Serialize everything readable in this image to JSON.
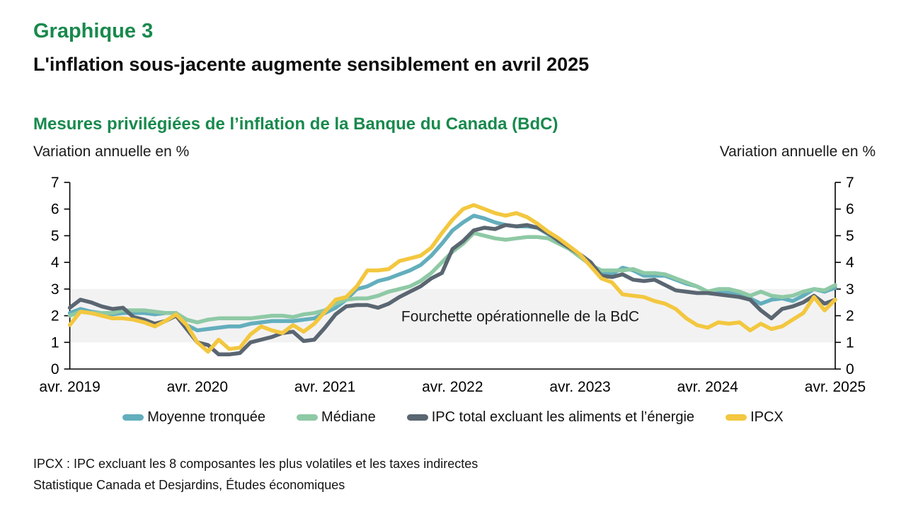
{
  "header": {
    "title": "Graphique 3",
    "subtitle": "L'inflation sous-jacente augmente sensiblement en avril 2025"
  },
  "chart": {
    "heading": "Mesures privilégiées de l’inflation de la Banque du Canada (BdC)",
    "left_axis_note": "Variation annuelle en %",
    "right_axis_note": "Variation annuelle en %"
  },
  "chart_data": {
    "type": "line",
    "x_unit": "month",
    "x_range": [
      "avr. 2019",
      "avr. 2025"
    ],
    "x_tick_labels": [
      "avr. 2019",
      "avr. 2020",
      "avr. 2021",
      "avr. 2022",
      "avr. 2023",
      "avr. 2024",
      "avr. 2025"
    ],
    "x_tick_positions": [
      0,
      12,
      24,
      36,
      48,
      60,
      72
    ],
    "ylim": [
      0,
      7
    ],
    "y_ticks": [
      0,
      1,
      2,
      3,
      4,
      5,
      6,
      7
    ],
    "dual_y_axis": true,
    "grid": false,
    "legend_position": "bottom",
    "operational_band": {
      "from": 1,
      "to": 3,
      "label": "Fourchette opérationnelle de la BdC",
      "color": "#f2f2f2"
    },
    "series": [
      {
        "name": "Moyenne tronquée",
        "color": "#63aebd",
        "values": [
          2.1,
          2.25,
          2.15,
          2.1,
          2.05,
          2.1,
          2.1,
          2.1,
          2.05,
          2.1,
          2.1,
          1.65,
          1.45,
          1.5,
          1.55,
          1.6,
          1.6,
          1.7,
          1.75,
          1.8,
          1.8,
          1.8,
          1.85,
          1.9,
          2.1,
          2.3,
          2.6,
          3.0,
          3.1,
          3.3,
          3.4,
          3.55,
          3.7,
          3.9,
          4.25,
          4.7,
          5.2,
          5.5,
          5.75,
          5.65,
          5.5,
          5.4,
          5.35,
          5.35,
          5.3,
          5.05,
          4.85,
          4.5,
          4.25,
          3.9,
          3.6,
          3.55,
          3.8,
          3.7,
          3.5,
          3.5,
          3.5,
          3.35,
          3.2,
          3.1,
          2.9,
          2.85,
          2.9,
          2.75,
          2.65,
          2.45,
          2.6,
          2.65,
          2.55,
          2.75,
          3.0,
          2.9,
          3.05
        ]
      },
      {
        "name": "Médiane",
        "color": "#8ec9a5",
        "values": [
          2.0,
          2.15,
          2.1,
          2.1,
          2.1,
          2.2,
          2.2,
          2.2,
          2.15,
          2.1,
          2.1,
          1.85,
          1.75,
          1.85,
          1.9,
          1.9,
          1.9,
          1.9,
          1.95,
          2.0,
          2.0,
          1.95,
          2.05,
          2.1,
          2.2,
          2.45,
          2.6,
          2.65,
          2.65,
          2.75,
          2.9,
          3.0,
          3.1,
          3.3,
          3.6,
          4.0,
          4.4,
          4.7,
          5.1,
          5.0,
          4.9,
          4.85,
          4.9,
          4.95,
          4.95,
          4.9,
          4.7,
          4.5,
          4.2,
          3.9,
          3.7,
          3.7,
          3.7,
          3.75,
          3.6,
          3.6,
          3.55,
          3.4,
          3.25,
          3.1,
          2.9,
          3.0,
          3.0,
          2.9,
          2.75,
          2.9,
          2.75,
          2.7,
          2.75,
          2.9,
          3.0,
          2.95,
          3.15
        ]
      },
      {
        "name": "IPC total excluant les aliments et l’énergie",
        "color": "#5a6671",
        "values": [
          2.3,
          2.6,
          2.5,
          2.35,
          2.25,
          2.3,
          1.95,
          1.85,
          1.7,
          1.8,
          2.0,
          1.5,
          1.0,
          0.9,
          0.55,
          0.55,
          0.6,
          1.0,
          1.1,
          1.2,
          1.35,
          1.4,
          1.05,
          1.1,
          1.55,
          2.05,
          2.35,
          2.4,
          2.4,
          2.3,
          2.45,
          2.7,
          2.9,
          3.1,
          3.4,
          3.6,
          4.5,
          4.8,
          5.2,
          5.3,
          5.25,
          5.4,
          5.35,
          5.4,
          5.3,
          5.1,
          4.8,
          4.55,
          4.3,
          4.0,
          3.5,
          3.45,
          3.55,
          3.35,
          3.3,
          3.35,
          3.15,
          2.95,
          2.9,
          2.85,
          2.85,
          2.8,
          2.75,
          2.7,
          2.6,
          2.2,
          1.9,
          2.25,
          2.35,
          2.5,
          2.75,
          2.45,
          2.6
        ]
      },
      {
        "name": "IPCX",
        "color": "#f3c73f",
        "values": [
          1.65,
          2.15,
          2.1,
          2.0,
          1.9,
          1.9,
          1.85,
          1.75,
          1.6,
          1.8,
          2.05,
          1.65,
          1.0,
          0.65,
          1.1,
          0.75,
          0.8,
          1.3,
          1.6,
          1.45,
          1.35,
          1.65,
          1.4,
          1.7,
          2.15,
          2.6,
          2.7,
          3.1,
          3.7,
          3.7,
          3.75,
          4.05,
          4.15,
          4.25,
          4.55,
          5.1,
          5.6,
          6.0,
          6.15,
          6.0,
          5.85,
          5.75,
          5.85,
          5.7,
          5.45,
          5.15,
          4.9,
          4.6,
          4.3,
          3.85,
          3.4,
          3.25,
          2.8,
          2.75,
          2.7,
          2.55,
          2.45,
          2.25,
          1.9,
          1.65,
          1.55,
          1.75,
          1.7,
          1.75,
          1.45,
          1.7,
          1.5,
          1.6,
          1.85,
          2.1,
          2.7,
          2.2,
          2.6
        ]
      }
    ]
  },
  "footnotes": {
    "line1": "IPCX : IPC excluant les 8 composantes les plus volatiles et les taxes indirectes",
    "line2": "Statistique Canada et Desjardins, Études économiques"
  },
  "colors": {
    "accent_green": "#18894d",
    "axis": "#000000",
    "band_fill": "#f2f2f2"
  }
}
